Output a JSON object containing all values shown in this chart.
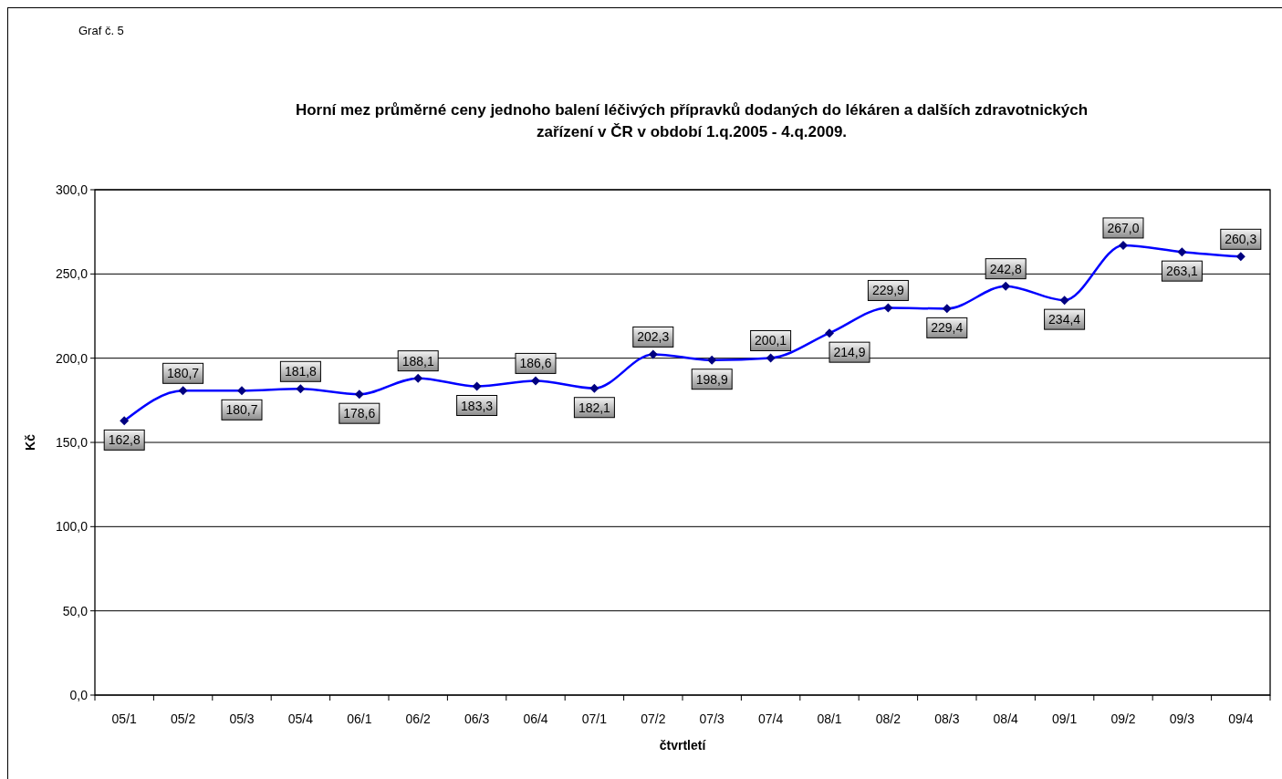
{
  "chart_data": {
    "type": "line",
    "title": "Horní mez průměrné ceny jednoho balení léčivých přípravků dodaných do lékáren a dalších zdravotnických zařízení v ČR v období 1.q.2005 - 4.q.2009.",
    "xlabel": "čtvrtletí",
    "ylabel": "Kč",
    "annotations": [
      "Graf č. 5"
    ],
    "categories": [
      "05/1",
      "05/2",
      "05/3",
      "05/4",
      "06/1",
      "06/2",
      "06/3",
      "06/4",
      "07/1",
      "07/2",
      "07/3",
      "07/4",
      "08/1",
      "08/2",
      "08/3",
      "08/4",
      "09/1",
      "09/2",
      "09/3",
      "09/4"
    ],
    "series": [
      {
        "color": "#0000ff",
        "values": [
          162.8,
          180.7,
          180.7,
          181.8,
          178.6,
          188.1,
          183.3,
          186.6,
          182.1,
          202.3,
          198.9,
          200.1,
          214.9,
          229.9,
          229.4,
          242.8,
          234.4,
          267.0,
          263.1,
          260.3
        ],
        "value_labels": [
          "162,8",
          "180,7",
          "180,7",
          "181,8",
          "178,6",
          "188,1",
          "183,3",
          "186,6",
          "182,1",
          "202,3",
          "198,9",
          "200,1",
          "214,9",
          "229,9",
          "229,4",
          "242,8",
          "234,4",
          "267,0",
          "263,1",
          "260,3"
        ]
      }
    ],
    "ylim": [
      0,
      300
    ],
    "yticks": [
      {
        "value": 0,
        "label": "0,0"
      },
      {
        "value": 50,
        "label": "50,0"
      },
      {
        "value": 100,
        "label": "100,0"
      },
      {
        "value": 150,
        "label": "150,0"
      },
      {
        "value": 200,
        "label": "200,0"
      },
      {
        "value": 250,
        "label": "250,0"
      },
      {
        "value": 300,
        "label": "300,0"
      }
    ],
    "grid": "y",
    "marker": "diamond",
    "line_style": "solid"
  }
}
